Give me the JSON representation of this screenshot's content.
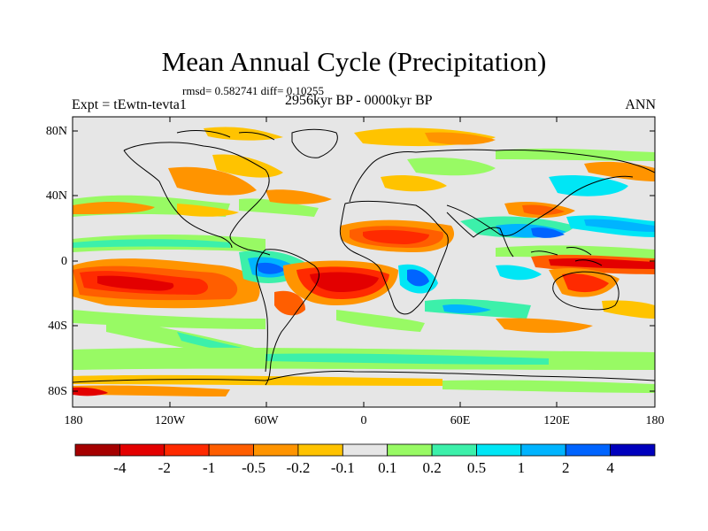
{
  "title": "Mean Annual Cycle (Precipitation)",
  "stats_text": "rmsd= 0.582741 diff= 0.10255",
  "experiment_label": "Expt = tEwtn-tevta1",
  "period_label": "2956kyr BP - 0000kyr BP",
  "season_label": "ANN",
  "lat_ticks": [
    "80N",
    "40N",
    "0",
    "40S",
    "80S"
  ],
  "lon_ticks": [
    "180",
    "120W",
    "60W",
    "0",
    "60E",
    "120E",
    "180"
  ],
  "colorbar": {
    "labels": [
      "-4",
      "-2",
      "-1",
      "-0.5",
      "-0.2",
      "-0.1",
      "0.1",
      "0.2",
      "0.5",
      "1",
      "2",
      "4"
    ],
    "colors": [
      "#a50000",
      "#e30000",
      "#ff2a00",
      "#ff5e00",
      "#ff9400",
      "#ffc300",
      "#e6e6e6",
      "#98fa64",
      "#3cf0aa",
      "#00e6f5",
      "#00b4ff",
      "#0064ff",
      "#0000bd"
    ]
  },
  "map": {
    "background": "#e6e6e6",
    "frame_color": "#000000"
  }
}
